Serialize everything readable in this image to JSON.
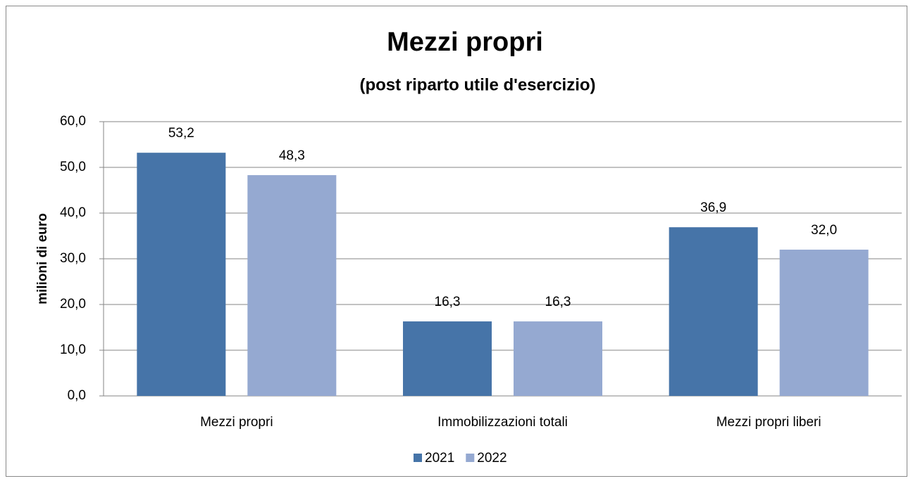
{
  "chart_data": {
    "type": "bar",
    "title": "Mezzi propri",
    "subtitle": "(post riparto utile d'esercizio)",
    "y_label": "milioni di euro",
    "categories": [
      "Mezzi propri",
      "Immobilizzazioni totali",
      "Mezzi propri liberi"
    ],
    "series": [
      {
        "name": "2021",
        "color": "#4674a8",
        "values": [
          53.2,
          16.3,
          36.9
        ],
        "value_labels": [
          "53,2",
          "16,3",
          "36,9"
        ]
      },
      {
        "name": "2022",
        "color": "#95a9d1",
        "values": [
          48.3,
          16.3,
          32.0
        ],
        "value_labels": [
          "48,3",
          "16,3",
          "32,0"
        ]
      }
    ],
    "ylim": [
      0,
      60
    ],
    "yticks": [
      {
        "value": 0,
        "label": "0,0"
      },
      {
        "value": 10,
        "label": "10,0"
      },
      {
        "value": 20,
        "label": "20,0"
      },
      {
        "value": 30,
        "label": "30,0"
      },
      {
        "value": 40,
        "label": "40,0"
      },
      {
        "value": 50,
        "label": "50,0"
      },
      {
        "value": 60,
        "label": "60,0"
      }
    ],
    "grid": true,
    "legend": "bottom"
  }
}
